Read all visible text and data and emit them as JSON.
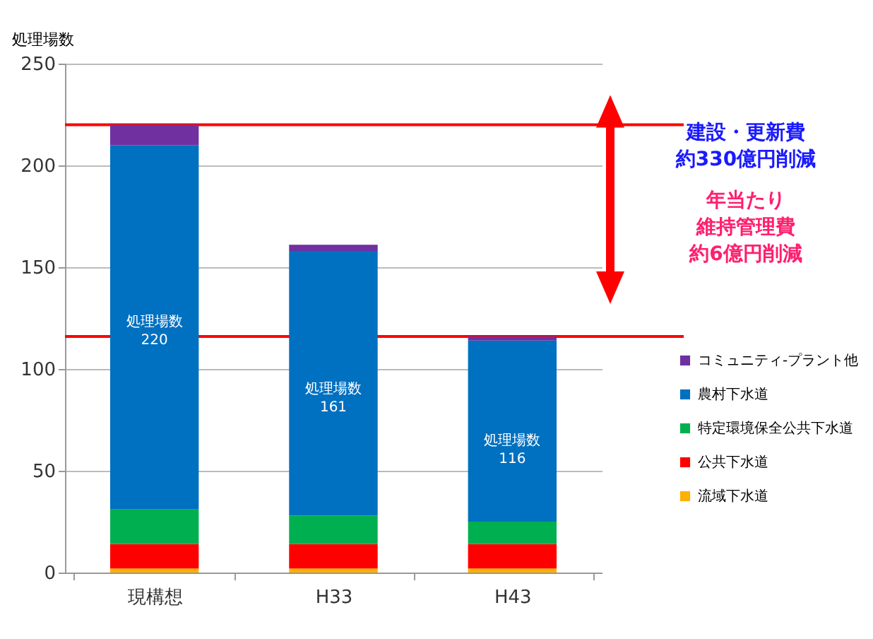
{
  "chart_data": {
    "type": "bar",
    "stacked": true,
    "ylabel": "処理場数",
    "categories": [
      "現構想",
      "H33",
      "H43"
    ],
    "series": [
      {
        "name": "流域下水道",
        "color": "#ffb000",
        "values": [
          2,
          2,
          2
        ]
      },
      {
        "name": "公共下水道",
        "color": "#ff0000",
        "values": [
          12,
          12,
          12
        ]
      },
      {
        "name": "特定環境保全公共下水道",
        "color": "#00b050",
        "values": [
          17,
          14,
          11
        ]
      },
      {
        "name": "農村下水道",
        "color": "#0070c0",
        "values": [
          179,
          130,
          89
        ]
      },
      {
        "name": "コミュニティ-プラント他",
        "color": "#7030a0",
        "values": [
          10,
          3,
          2
        ]
      }
    ],
    "totals": [
      "220",
      "161",
      "116"
    ],
    "ylim": [
      0,
      250
    ],
    "yticks": [
      0,
      50,
      100,
      150,
      200,
      250
    ],
    "grid": "y",
    "legend": "right",
    "ref_lines": [
      {
        "axis": "y",
        "value": 220,
        "color": "#ff0000"
      },
      {
        "axis": "y",
        "value": 116,
        "color": "#ff0000"
      }
    ],
    "annotations": [
      "処理場数",
      "処理場数",
      "処理場数",
      "建設・更新費",
      "約330億円削減",
      "年当たり",
      "維持管理費",
      "約6億円削減"
    ]
  }
}
